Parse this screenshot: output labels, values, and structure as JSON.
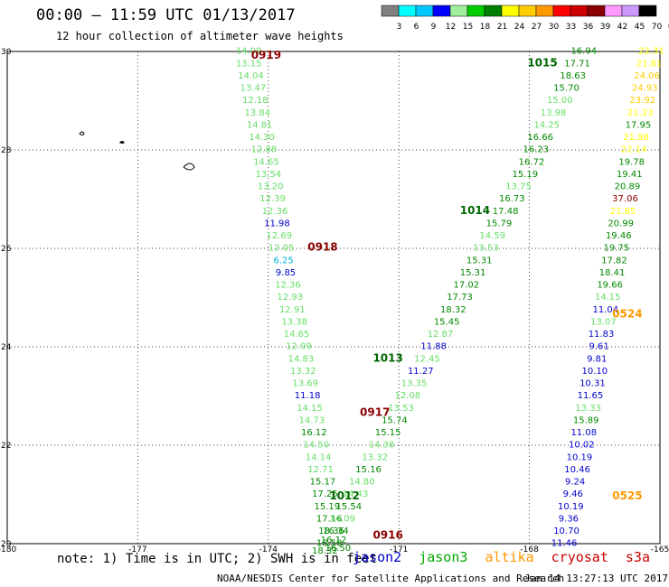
{
  "header": {
    "title": "00:00 – 11:59 UTC 01/13/2017",
    "subtitle": "12 hour collection of altimeter wave heights"
  },
  "colorbar": {
    "labels": [
      "3",
      "6",
      "9",
      "12",
      "15",
      "18",
      "21",
      "24",
      "27",
      "30",
      "33",
      "36",
      "39",
      "42",
      "45",
      "70",
      "(ft)"
    ],
    "colors": [
      "#808080",
      "#00ffff",
      "#00c8ff",
      "#0000ff",
      "#a0f0a0",
      "#00cc00",
      "#008000",
      "#ffff00",
      "#ffcc00",
      "#ff9900",
      "#ff0000",
      "#cc0000",
      "#8b0000",
      "#ff99ff",
      "#cc99ff",
      "#000000"
    ]
  },
  "footer": {
    "note": "note: 1) Time is in UTC; 2) SWH is in feet",
    "satellites": [
      {
        "name": "jason2",
        "color": "#0000cc"
      },
      {
        "name": "jason3",
        "color": "#00aa00"
      },
      {
        "name": "altika",
        "color": "#ff9900"
      },
      {
        "name": "cryosat",
        "color": "#cc0000"
      },
      {
        "name": "s3a",
        "color": "#cc0000"
      }
    ],
    "credit": "NOAA/NESDIS Center for Satellite Applications and Research",
    "stamp": "Jan 14 13:27:13 UTC 2017"
  },
  "chart_data": {
    "type": "scatter",
    "title": "00:00 – 11:59 UTC 01/13/2017",
    "xlim": [
      -180,
      -165
    ],
    "ylim": [
      20,
      30
    ],
    "x_ticks": [
      "-180",
      "-177",
      "-174",
      "-171",
      "-168",
      "-165"
    ],
    "y_ticks": [
      "20",
      "22",
      "24",
      "26",
      "28",
      "30"
    ],
    "grid": true,
    "time_labels": [
      {
        "text": "0919",
        "lon": -174.05,
        "lat": 29.85,
        "color": "#8b0000"
      },
      {
        "text": "0918",
        "lon": -172.75,
        "lat": 25.95,
        "color": "#8b0000"
      },
      {
        "text": "0917",
        "lon": -171.55,
        "lat": 22.6,
        "color": "#8b0000"
      },
      {
        "text": "0916",
        "lon": -171.25,
        "lat": 20.1,
        "color": "#8b0000"
      },
      {
        "text": "1015",
        "lon": -167.7,
        "lat": 29.7,
        "color": "#006600"
      },
      {
        "text": "1014",
        "lon": -169.25,
        "lat": 26.7,
        "color": "#006600"
      },
      {
        "text": "1013",
        "lon": -171.25,
        "lat": 23.7,
        "color": "#006600"
      },
      {
        "text": "1012",
        "lon": -172.25,
        "lat": 20.9,
        "color": "#006600"
      },
      {
        "text": "0524",
        "lon": -165.75,
        "lat": 24.6,
        "color": "#ff9900"
      },
      {
        "text": "0525",
        "lon": -165.75,
        "lat": 20.9,
        "color": "#ff9900"
      }
    ],
    "points": [
      {
        "lon": -174.45,
        "lat": 29.95,
        "v": "14.09",
        "color": "#66dd66"
      },
      {
        "lon": -174.45,
        "lat": 29.7,
        "v": "13.15",
        "color": "#66dd66"
      },
      {
        "lon": -174.4,
        "lat": 29.45,
        "v": "14.04",
        "color": "#66dd66"
      },
      {
        "lon": -174.35,
        "lat": 29.2,
        "v": "13.47",
        "color": "#66dd66"
      },
      {
        "lon": -174.3,
        "lat": 28.95,
        "v": "12.18",
        "color": "#66dd66"
      },
      {
        "lon": -174.25,
        "lat": 28.7,
        "v": "13.84",
        "color": "#66dd66"
      },
      {
        "lon": -174.2,
        "lat": 28.45,
        "v": "14.81",
        "color": "#66dd66"
      },
      {
        "lon": -174.15,
        "lat": 28.2,
        "v": "14.30",
        "color": "#66dd66"
      },
      {
        "lon": -174.1,
        "lat": 27.95,
        "v": "12.88",
        "color": "#66dd66"
      },
      {
        "lon": -174.05,
        "lat": 27.7,
        "v": "14.65",
        "color": "#66dd66"
      },
      {
        "lon": -174.0,
        "lat": 27.45,
        "v": "13.54",
        "color": "#66dd66"
      },
      {
        "lon": -173.95,
        "lat": 27.2,
        "v": "13.20",
        "color": "#66dd66"
      },
      {
        "lon": -173.9,
        "lat": 26.95,
        "v": "12.39",
        "color": "#66dd66"
      },
      {
        "lon": -173.85,
        "lat": 26.7,
        "v": "12.36",
        "color": "#66dd66"
      },
      {
        "lon": -173.8,
        "lat": 26.45,
        "v": "11.98",
        "color": "#0000cc"
      },
      {
        "lon": -173.75,
        "lat": 26.2,
        "v": "12.69",
        "color": "#66dd66"
      },
      {
        "lon": -173.7,
        "lat": 25.95,
        "v": "12.05",
        "color": "#66dd66"
      },
      {
        "lon": -173.65,
        "lat": 25.7,
        "v": "6.25",
        "color": "#00b0e0"
      },
      {
        "lon": -173.6,
        "lat": 25.45,
        "v": "9.85",
        "color": "#0000cc"
      },
      {
        "lon": -173.55,
        "lat": 25.2,
        "v": "12.36",
        "color": "#66dd66"
      },
      {
        "lon": -173.5,
        "lat": 24.95,
        "v": "12.93",
        "color": "#66dd66"
      },
      {
        "lon": -173.45,
        "lat": 24.7,
        "v": "12.91",
        "color": "#66dd66"
      },
      {
        "lon": -173.4,
        "lat": 24.45,
        "v": "13.38",
        "color": "#66dd66"
      },
      {
        "lon": -173.35,
        "lat": 24.2,
        "v": "14.65",
        "color": "#66dd66"
      },
      {
        "lon": -173.3,
        "lat": 23.95,
        "v": "12.99",
        "color": "#66dd66"
      },
      {
        "lon": -173.25,
        "lat": 23.7,
        "v": "14.83",
        "color": "#66dd66"
      },
      {
        "lon": -173.2,
        "lat": 23.45,
        "v": "13.32",
        "color": "#66dd66"
      },
      {
        "lon": -173.15,
        "lat": 23.2,
        "v": "13.69",
        "color": "#66dd66"
      },
      {
        "lon": -173.1,
        "lat": 22.95,
        "v": "11.18",
        "color": "#0000cc"
      },
      {
        "lon": -173.05,
        "lat": 22.7,
        "v": "14.15",
        "color": "#66dd66"
      },
      {
        "lon": -173.0,
        "lat": 22.45,
        "v": "14.73",
        "color": "#66dd66"
      },
      {
        "lon": -172.95,
        "lat": 22.2,
        "v": "16.12",
        "color": "#008800"
      },
      {
        "lon": -172.9,
        "lat": 21.95,
        "v": "14.50",
        "color": "#66dd66"
      },
      {
        "lon": -172.85,
        "lat": 21.7,
        "v": "14.14",
        "color": "#66dd66"
      },
      {
        "lon": -172.8,
        "lat": 21.45,
        "v": "12.71",
        "color": "#66dd66"
      },
      {
        "lon": -172.75,
        "lat": 21.2,
        "v": "15.17",
        "color": "#008800"
      },
      {
        "lon": -172.7,
        "lat": 20.95,
        "v": "17.25",
        "color": "#008800"
      },
      {
        "lon": -172.65,
        "lat": 20.7,
        "v": "15.19",
        "color": "#008800"
      },
      {
        "lon": -172.6,
        "lat": 20.45,
        "v": "17.16",
        "color": "#008800"
      },
      {
        "lon": -172.55,
        "lat": 20.2,
        "v": "18.36",
        "color": "#008800"
      },
      {
        "lon": -172.5,
        "lat": 20.02,
        "v": "16.12",
        "color": "#008800"
      },
      {
        "lon": -172.4,
        "lat": 19.85,
        "v": "16.50",
        "color": "#008800"
      },
      {
        "lon": -166.75,
        "lat": 29.95,
        "v": "16.94",
        "color": "#008800"
      },
      {
        "lon": -166.9,
        "lat": 29.7,
        "v": "17.71",
        "color": "#008800"
      },
      {
        "lon": -167.0,
        "lat": 29.45,
        "v": "18.63",
        "color": "#008800"
      },
      {
        "lon": -167.15,
        "lat": 29.2,
        "v": "15.70",
        "color": "#008800"
      },
      {
        "lon": -167.3,
        "lat": 28.95,
        "v": "15.00",
        "color": "#66dd66"
      },
      {
        "lon": -167.45,
        "lat": 28.7,
        "v": "13.98",
        "color": "#66dd66"
      },
      {
        "lon": -167.6,
        "lat": 28.45,
        "v": "14.25",
        "color": "#66dd66"
      },
      {
        "lon": -167.75,
        "lat": 28.2,
        "v": "16.66",
        "color": "#008800"
      },
      {
        "lon": -167.85,
        "lat": 27.95,
        "v": "16.23",
        "color": "#008800"
      },
      {
        "lon": -167.95,
        "lat": 27.7,
        "v": "16.72",
        "color": "#008800"
      },
      {
        "lon": -168.1,
        "lat": 27.45,
        "v": "15.19",
        "color": "#008800"
      },
      {
        "lon": -168.25,
        "lat": 27.2,
        "v": "13.75",
        "color": "#66dd66"
      },
      {
        "lon": -168.4,
        "lat": 26.95,
        "v": "16.73",
        "color": "#008800"
      },
      {
        "lon": -168.55,
        "lat": 26.7,
        "v": "17.48",
        "color": "#008800"
      },
      {
        "lon": -168.7,
        "lat": 26.45,
        "v": "15.79",
        "color": "#008800"
      },
      {
        "lon": -168.85,
        "lat": 26.2,
        "v": "14.59",
        "color": "#66dd66"
      },
      {
        "lon": -169.0,
        "lat": 25.95,
        "v": "13.53",
        "color": "#66dd66"
      },
      {
        "lon": -169.15,
        "lat": 25.7,
        "v": "15.31",
        "color": "#008800"
      },
      {
        "lon": -169.3,
        "lat": 25.45,
        "v": "15.31",
        "color": "#008800"
      },
      {
        "lon": -169.45,
        "lat": 25.2,
        "v": "17.02",
        "color": "#008800"
      },
      {
        "lon": -169.6,
        "lat": 24.95,
        "v": "17.73",
        "color": "#008800"
      },
      {
        "lon": -169.75,
        "lat": 24.7,
        "v": "18.32",
        "color": "#008800"
      },
      {
        "lon": -169.9,
        "lat": 24.45,
        "v": "15.45",
        "color": "#008800"
      },
      {
        "lon": -170.05,
        "lat": 24.2,
        "v": "12.87",
        "color": "#66dd66"
      },
      {
        "lon": -170.2,
        "lat": 23.95,
        "v": "11.88",
        "color": "#0000cc"
      },
      {
        "lon": -170.35,
        "lat": 23.7,
        "v": "12.45",
        "color": "#66dd66"
      },
      {
        "lon": -170.5,
        "lat": 23.45,
        "v": "11.27",
        "color": "#0000cc"
      },
      {
        "lon": -170.65,
        "lat": 23.2,
        "v": "13.35",
        "color": "#66dd66"
      },
      {
        "lon": -170.8,
        "lat": 22.95,
        "v": "12.08",
        "color": "#66dd66"
      },
      {
        "lon": -170.95,
        "lat": 22.7,
        "v": "13.53",
        "color": "#66dd66"
      },
      {
        "lon": -171.1,
        "lat": 22.45,
        "v": "15.74",
        "color": "#008800"
      },
      {
        "lon": -171.25,
        "lat": 22.2,
        "v": "15.15",
        "color": "#008800"
      },
      {
        "lon": -171.4,
        "lat": 21.95,
        "v": "14.38",
        "color": "#66dd66"
      },
      {
        "lon": -171.55,
        "lat": 21.7,
        "v": "13.32",
        "color": "#66dd66"
      },
      {
        "lon": -171.7,
        "lat": 21.45,
        "v": "15.16",
        "color": "#008800"
      },
      {
        "lon": -171.85,
        "lat": 21.2,
        "v": "14.80",
        "color": "#66dd66"
      },
      {
        "lon": -172.0,
        "lat": 20.95,
        "v": "14.43",
        "color": "#66dd66"
      },
      {
        "lon": -172.15,
        "lat": 20.7,
        "v": "15.54",
        "color": "#008800"
      },
      {
        "lon": -172.3,
        "lat": 20.45,
        "v": "14.09",
        "color": "#66dd66"
      },
      {
        "lon": -172.45,
        "lat": 20.2,
        "v": "16.34",
        "color": "#008800"
      },
      {
        "lon": -172.6,
        "lat": 19.95,
        "v": "18.58",
        "color": "#008800"
      },
      {
        "lon": -172.7,
        "lat": 19.8,
        "v": "18.32",
        "color": "#008800"
      },
      {
        "lon": -165.2,
        "lat": 29.95,
        "v": "22.31",
        "color": "#ffff00"
      },
      {
        "lon": -165.25,
        "lat": 29.7,
        "v": "21.81",
        "color": "#ffff00"
      },
      {
        "lon": -165.3,
        "lat": 29.45,
        "v": "24.06",
        "color": "#ffcc00"
      },
      {
        "lon": -165.35,
        "lat": 29.2,
        "v": "24.93",
        "color": "#ffcc00"
      },
      {
        "lon": -165.4,
        "lat": 28.95,
        "v": "23.92",
        "color": "#ffcc00"
      },
      {
        "lon": -165.45,
        "lat": 28.7,
        "v": "21.23",
        "color": "#ffff00"
      },
      {
        "lon": -165.5,
        "lat": 28.45,
        "v": "17.95",
        "color": "#008800"
      },
      {
        "lon": -165.55,
        "lat": 28.2,
        "v": "21.98",
        "color": "#ffff00"
      },
      {
        "lon": -165.6,
        "lat": 27.95,
        "v": "22.14",
        "color": "#ffff00"
      },
      {
        "lon": -165.65,
        "lat": 27.7,
        "v": "19.78",
        "color": "#008800"
      },
      {
        "lon": -165.7,
        "lat": 27.45,
        "v": "19.41",
        "color": "#008800"
      },
      {
        "lon": -165.75,
        "lat": 27.2,
        "v": "20.89",
        "color": "#008800"
      },
      {
        "lon": -165.8,
        "lat": 26.95,
        "v": "37.06",
        "color": "#8b0000"
      },
      {
        "lon": -165.85,
        "lat": 26.7,
        "v": "21.85",
        "color": "#ffff00"
      },
      {
        "lon": -165.9,
        "lat": 26.45,
        "v": "20.99",
        "color": "#008800"
      },
      {
        "lon": -165.95,
        "lat": 26.2,
        "v": "19.46",
        "color": "#008800"
      },
      {
        "lon": -166.0,
        "lat": 25.95,
        "v": "19.75",
        "color": "#008800"
      },
      {
        "lon": -166.05,
        "lat": 25.7,
        "v": "17.82",
        "color": "#008800"
      },
      {
        "lon": -166.1,
        "lat": 25.45,
        "v": "18.41",
        "color": "#008800"
      },
      {
        "lon": -166.15,
        "lat": 25.2,
        "v": "19.66",
        "color": "#008800"
      },
      {
        "lon": -166.2,
        "lat": 24.95,
        "v": "14.15",
        "color": "#66dd66"
      },
      {
        "lon": -166.25,
        "lat": 24.7,
        "v": "11.04",
        "color": "#0000cc"
      },
      {
        "lon": -166.3,
        "lat": 24.45,
        "v": "13.07",
        "color": "#66dd66"
      },
      {
        "lon": -166.35,
        "lat": 24.2,
        "v": "11.83",
        "color": "#0000cc"
      },
      {
        "lon": -166.4,
        "lat": 23.95,
        "v": "9.61",
        "color": "#0000cc"
      },
      {
        "lon": -166.45,
        "lat": 23.7,
        "v": "9.81",
        "color": "#0000cc"
      },
      {
        "lon": -166.5,
        "lat": 23.45,
        "v": "10.10",
        "color": "#0000cc"
      },
      {
        "lon": -166.55,
        "lat": 23.2,
        "v": "10.31",
        "color": "#0000cc"
      },
      {
        "lon": -166.6,
        "lat": 22.95,
        "v": "11.65",
        "color": "#0000cc"
      },
      {
        "lon": -166.65,
        "lat": 22.7,
        "v": "13.33",
        "color": "#66dd66"
      },
      {
        "lon": -166.7,
        "lat": 22.45,
        "v": "15.89",
        "color": "#008800"
      },
      {
        "lon": -166.75,
        "lat": 22.2,
        "v": "11.08",
        "color": "#0000cc"
      },
      {
        "lon": -166.8,
        "lat": 21.95,
        "v": "10.02",
        "color": "#0000cc"
      },
      {
        "lon": -166.85,
        "lat": 21.7,
        "v": "10.19",
        "color": "#0000cc"
      },
      {
        "lon": -166.9,
        "lat": 21.45,
        "v": "10.46",
        "color": "#0000cc"
      },
      {
        "lon": -166.95,
        "lat": 21.2,
        "v": "9.24",
        "color": "#0000cc"
      },
      {
        "lon": -167.0,
        "lat": 20.95,
        "v": "9.46",
        "color": "#0000cc"
      },
      {
        "lon": -167.05,
        "lat": 20.7,
        "v": "10.19",
        "color": "#0000cc"
      },
      {
        "lon": -167.1,
        "lat": 20.45,
        "v": "9.36",
        "color": "#0000cc"
      },
      {
        "lon": -167.15,
        "lat": 20.2,
        "v": "10.70",
        "color": "#0000cc"
      },
      {
        "lon": -167.2,
        "lat": 19.95,
        "v": "11.46",
        "color": "#0000cc"
      }
    ]
  }
}
